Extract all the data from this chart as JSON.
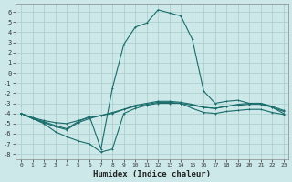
{
  "xlabel": "Humidex (Indice chaleur)",
  "bg_color": "#cce8e8",
  "grid_color": "#aacccc",
  "line_color": "#1a6b6b",
  "xlim_min": -0.5,
  "xlim_max": 23.4,
  "ylim_min": -8.5,
  "ylim_max": 6.8,
  "xticks": [
    0,
    1,
    2,
    3,
    4,
    5,
    6,
    7,
    8,
    9,
    10,
    11,
    12,
    13,
    14,
    15,
    16,
    17,
    18,
    19,
    20,
    21,
    22,
    23
  ],
  "yticks": [
    -8,
    -7,
    -6,
    -5,
    -4,
    -3,
    -2,
    -1,
    0,
    1,
    2,
    3,
    4,
    5,
    6
  ],
  "line1_x": [
    0,
    1,
    2,
    3,
    4,
    5,
    6,
    7,
    8,
    9,
    10,
    11,
    12,
    13,
    14,
    15,
    16,
    17,
    18,
    19,
    20,
    21,
    22,
    23
  ],
  "line1_y": [
    -4.0,
    -4.5,
    -4.9,
    -5.3,
    -5.6,
    -4.9,
    -4.5,
    -4.2,
    -3.9,
    -3.6,
    -3.3,
    -3.1,
    -2.9,
    -2.9,
    -3.0,
    -3.2,
    -3.4,
    -3.5,
    -3.3,
    -3.2,
    -3.1,
    -3.1,
    -3.4,
    -3.8
  ],
  "line2_x": [
    0,
    1,
    2,
    3,
    4,
    5,
    6,
    7,
    8,
    9,
    10,
    11,
    12,
    13,
    14,
    15,
    16,
    17,
    18,
    19,
    20,
    21,
    22,
    23
  ],
  "line2_y": [
    -4.0,
    -4.5,
    -4.8,
    -5.2,
    -5.5,
    -4.8,
    -4.3,
    -7.5,
    -1.5,
    2.8,
    4.5,
    4.9,
    6.2,
    5.9,
    5.6,
    3.3,
    -1.8,
    -3.0,
    -2.8,
    -2.7,
    -3.0,
    -3.0,
    -3.4,
    -4.0
  ],
  "line3_x": [
    0,
    1,
    2,
    3,
    4,
    5,
    6,
    7,
    8,
    9,
    10,
    11,
    12,
    13,
    14,
    15,
    16,
    17,
    18,
    19,
    20,
    21,
    22,
    23
  ],
  "line3_y": [
    -4.0,
    -4.5,
    -5.0,
    -5.8,
    -6.3,
    -6.7,
    -7.0,
    -7.8,
    -7.5,
    -4.0,
    -3.5,
    -3.2,
    -3.0,
    -3.0,
    -3.0,
    -3.5,
    -3.9,
    -4.0,
    -3.8,
    -3.7,
    -3.6,
    -3.6,
    -3.9,
    -4.1
  ],
  "line4_x": [
    0,
    1,
    2,
    3,
    4,
    5,
    6,
    7,
    8,
    9,
    10,
    11,
    12,
    13,
    14,
    15,
    16,
    17,
    18,
    19,
    20,
    21,
    22,
    23
  ],
  "line4_y": [
    -4.0,
    -4.4,
    -4.7,
    -4.9,
    -5.0,
    -4.7,
    -4.4,
    -4.2,
    -4.0,
    -3.6,
    -3.2,
    -3.0,
    -2.8,
    -2.8,
    -2.9,
    -3.1,
    -3.4,
    -3.5,
    -3.3,
    -3.1,
    -3.0,
    -3.0,
    -3.3,
    -3.7
  ]
}
